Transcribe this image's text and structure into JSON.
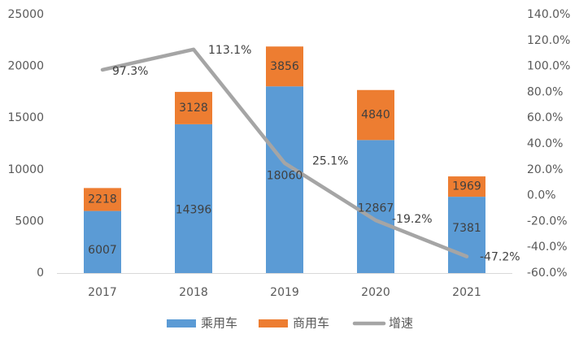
{
  "chart_data": {
    "type": "bar",
    "stacked": true,
    "categories": [
      "2017",
      "2018",
      "2019",
      "2020",
      "2021"
    ],
    "series": [
      {
        "name": "乘用车",
        "type": "bar",
        "axis": "left",
        "color": "#5b9bd5",
        "values": [
          6007,
          14396,
          18060,
          12867,
          7381
        ],
        "labels": [
          "6007",
          "14396",
          "18060",
          "12867",
          "7381"
        ]
      },
      {
        "name": "商用车",
        "type": "bar",
        "axis": "left",
        "color": "#ed7d31",
        "values": [
          2218,
          3128,
          3856,
          4840,
          1969
        ],
        "labels": [
          "2218",
          "3128",
          "3856",
          "4840",
          "1969"
        ]
      },
      {
        "name": "增速",
        "type": "line",
        "axis": "right",
        "color": "#a5a5a5",
        "values": [
          97.3,
          113.1,
          25.1,
          -19.2,
          -47.2
        ],
        "labels": [
          "97.3%",
          "113.1%",
          "25.1%",
          "-19.2%",
          "-47.2%"
        ]
      }
    ],
    "y_left": {
      "min": 0,
      "max": 25000,
      "ticks": [
        "0",
        "5000",
        "10000",
        "15000",
        "20000",
        "25000"
      ]
    },
    "y_right": {
      "min": -60,
      "max": 140,
      "ticks": [
        "-60.0%",
        "-40.0%",
        "-20.0%",
        "0.0%",
        "20.0%",
        "40.0%",
        "60.0%",
        "80.0%",
        "100.0%",
        "120.0%",
        "140.0%"
      ]
    },
    "title": "",
    "xlabel": "",
    "ylabel": "",
    "grid": false,
    "legend_position": "bottom",
    "colors": {
      "axis": "#d9d9d9",
      "text": "#595959",
      "label_text": "#404040"
    }
  }
}
